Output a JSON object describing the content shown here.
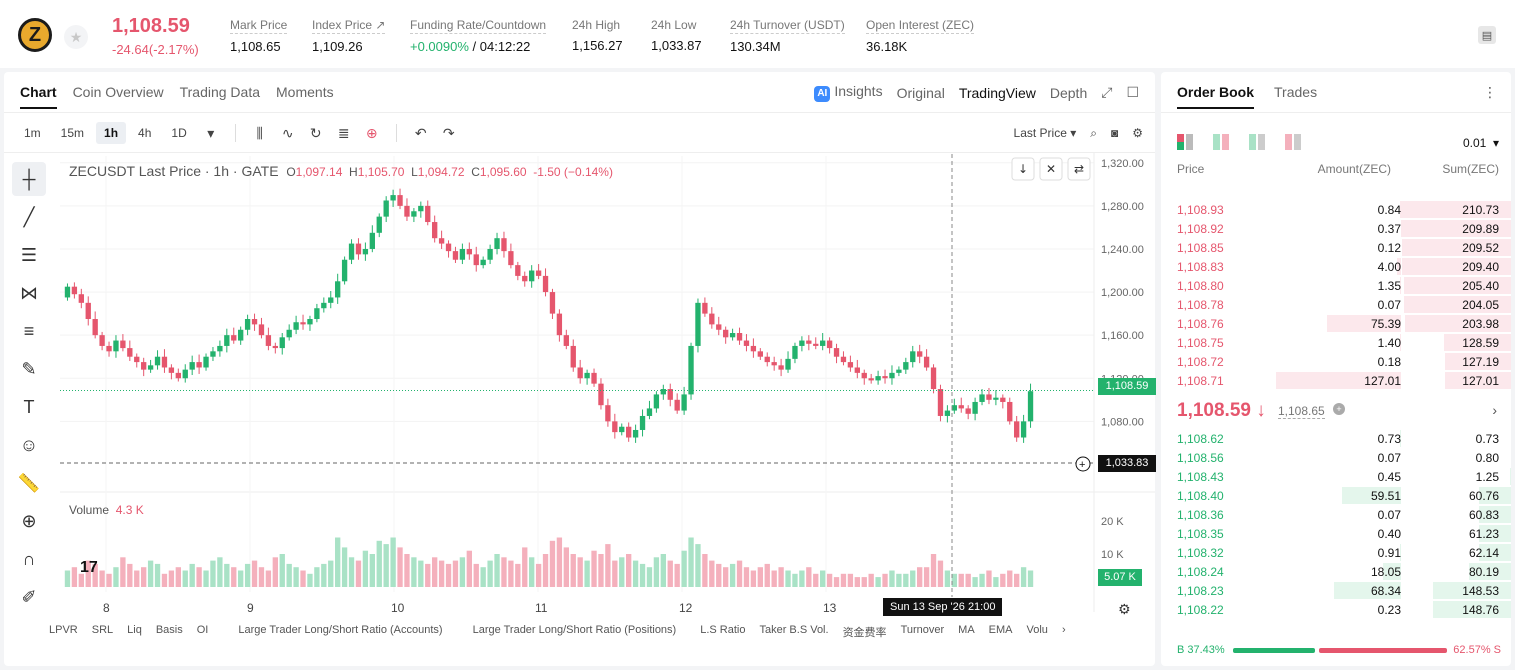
{
  "header": {
    "coin_symbol": "Z",
    "last_price": "1,108.59",
    "change": "-24.64(-2.17%)",
    "stats": [
      {
        "label": "Mark Price",
        "value": "1,108.65"
      },
      {
        "label": "Index Price ↗",
        "value": "1,109.26"
      },
      {
        "label": "Funding Rate/Countdown",
        "value_green": "+0.0090%",
        "value": " / 04:12:22"
      },
      {
        "label": "24h High",
        "value": "1,156.27"
      },
      {
        "label": "24h Low",
        "value": "1,033.87"
      },
      {
        "label": "24h Turnover (USDT)",
        "value": "130.34M"
      },
      {
        "label": "Open Interest (ZEC)",
        "value": "36.18K"
      }
    ]
  },
  "chart_tabs": [
    "Chart",
    "Coin Overview",
    "Trading Data",
    "Moments"
  ],
  "chart_views": {
    "insights": "Insights",
    "original": "Original",
    "tradingview": "TradingView",
    "depth": "Depth"
  },
  "timeframes": [
    "1m",
    "15m",
    "1h",
    "4h",
    "1D"
  ],
  "price_source": "Last Price",
  "ohlc": {
    "title": "ZECUSDT Last Price · 1h · GATE",
    "o_label": "O",
    "o": "1,097.14",
    "h_label": "H",
    "h": "1,105.70",
    "l_label": "L",
    "l": "1,094.72",
    "c_label": "C",
    "c": "1,095.60",
    "chg": "-1.50 (−0.14%)"
  },
  "volume": {
    "label": "Volume",
    "value": "4.3 K",
    "current": "5.07 K"
  },
  "price_labels": {
    "current": "1,108.59",
    "crosshair": "1,033.83"
  },
  "crosshair_time": "Sun 13 Sep '26   21:00",
  "indicators": [
    "LPVR",
    "SRL",
    "Liq",
    "Basis",
    "OI",
    "Large Trader Long/Short Ratio (Accounts)",
    "Large Trader Long/Short Ratio (Positions)",
    "L.S Ratio",
    "Taker B.S Vol.",
    "资金费率",
    "Turnover",
    "MA",
    "EMA",
    "Volu"
  ],
  "chart_data": {
    "type": "candlestick",
    "symbol": "ZECUSDT",
    "interval": "1h",
    "ylim": [
      1020,
      1330
    ],
    "y_ticks": [
      "1,320.00",
      "1,280.00",
      "1,240.00",
      "1,200.00",
      "1,160.00",
      "1,120.00",
      "1,080.00"
    ],
    "x_ticks": [
      "8",
      "9",
      "10",
      "11",
      "12",
      "13"
    ],
    "volume_ticks": [
      "20 K",
      "10 K"
    ],
    "closes": [
      1205,
      1198,
      1190,
      1175,
      1160,
      1150,
      1145,
      1155,
      1148,
      1140,
      1135,
      1128,
      1132,
      1140,
      1130,
      1125,
      1120,
      1128,
      1135,
      1130,
      1140,
      1145,
      1150,
      1160,
      1155,
      1165,
      1175,
      1170,
      1160,
      1150,
      1148,
      1158,
      1165,
      1172,
      1170,
      1175,
      1185,
      1190,
      1195,
      1210,
      1230,
      1245,
      1235,
      1240,
      1255,
      1270,
      1285,
      1290,
      1280,
      1270,
      1275,
      1280,
      1265,
      1250,
      1245,
      1238,
      1230,
      1240,
      1235,
      1225,
      1230,
      1240,
      1250,
      1238,
      1225,
      1215,
      1210,
      1220,
      1215,
      1200,
      1180,
      1160,
      1150,
      1130,
      1120,
      1125,
      1115,
      1095,
      1080,
      1070,
      1075,
      1065,
      1072,
      1085,
      1092,
      1105,
      1110,
      1100,
      1090,
      1105,
      1150,
      1190,
      1180,
      1170,
      1165,
      1158,
      1162,
      1155,
      1150,
      1145,
      1140,
      1135,
      1132,
      1128,
      1138,
      1150,
      1155,
      1152,
      1150,
      1155,
      1148,
      1140,
      1135,
      1130,
      1125,
      1120,
      1118,
      1122,
      1120,
      1125,
      1128,
      1135,
      1145,
      1140,
      1130,
      1110,
      1085,
      1090,
      1095,
      1092,
      1087,
      1098,
      1105,
      1100,
      1102,
      1098,
      1080,
      1065,
      1080,
      1108
    ],
    "volumes": [
      5,
      6,
      4,
      8,
      7,
      5,
      4,
      6,
      9,
      7,
      5,
      6,
      8,
      7,
      4,
      5,
      6,
      5,
      7,
      6,
      5,
      8,
      9,
      7,
      6,
      5,
      7,
      8,
      6,
      5,
      9,
      10,
      7,
      6,
      5,
      4,
      6,
      7,
      8,
      15,
      12,
      9,
      8,
      11,
      10,
      14,
      13,
      15,
      12,
      10,
      9,
      8,
      7,
      9,
      8,
      7,
      8,
      9,
      11,
      7,
      6,
      8,
      10,
      9,
      8,
      7,
      12,
      9,
      7,
      10,
      14,
      15,
      12,
      10,
      9,
      8,
      11,
      10,
      13,
      8,
      9,
      10,
      8,
      7,
      6,
      9,
      10,
      8,
      7,
      11,
      15,
      13,
      10,
      8,
      7,
      6,
      7,
      8,
      6,
      5,
      6,
      7,
      5,
      6,
      5,
      4,
      5,
      6,
      4,
      5,
      4,
      3,
      4,
      4,
      3,
      3,
      4,
      3,
      4,
      5,
      4,
      4,
      5,
      6,
      6,
      10,
      8,
      5,
      4,
      4,
      4,
      3,
      4,
      5,
      3,
      4,
      5,
      4,
      6,
      5
    ]
  },
  "orderbook": {
    "tabs": [
      "Order Book",
      "Trades"
    ],
    "precision": "0.01",
    "columns": [
      "Price",
      "Amount(ZEC)",
      "Sum(ZEC)"
    ],
    "asks": [
      [
        "1,108.93",
        "0.84",
        "210.73"
      ],
      [
        "1,108.92",
        "0.37",
        "209.89"
      ],
      [
        "1,108.85",
        "0.12",
        "209.52"
      ],
      [
        "1,108.83",
        "4.00",
        "209.40"
      ],
      [
        "1,108.80",
        "1.35",
        "205.40"
      ],
      [
        "1,108.78",
        "0.07",
        "204.05"
      ],
      [
        "1,108.76",
        "75.39",
        "203.98"
      ],
      [
        "1,108.75",
        "1.40",
        "128.59"
      ],
      [
        "1,108.72",
        "0.18",
        "127.19"
      ],
      [
        "1,108.71",
        "127.01",
        "127.01"
      ]
    ],
    "mid_price": "1,108.59 ↓",
    "mid_mark": "1,108.65",
    "bids": [
      [
        "1,108.62",
        "0.73",
        "0.73"
      ],
      [
        "1,108.56",
        "0.07",
        "0.80"
      ],
      [
        "1,108.43",
        "0.45",
        "1.25"
      ],
      [
        "1,108.40",
        "59.51",
        "60.76"
      ],
      [
        "1,108.36",
        "0.07",
        "60.83"
      ],
      [
        "1,108.35",
        "0.40",
        "61.23"
      ],
      [
        "1,108.32",
        "0.91",
        "62.14"
      ],
      [
        "1,108.24",
        "18.05",
        "80.19"
      ],
      [
        "1,108.23",
        "68.34",
        "148.53"
      ],
      [
        "1,108.22",
        "0.23",
        "148.76"
      ]
    ],
    "buy_ratio": "B 37.43%",
    "sell_ratio": "62.57% S"
  },
  "colors": {
    "up": "#23b26d",
    "down": "#e5566d",
    "up_light": "#a9e2c6",
    "down_light": "#f4b0bc"
  }
}
